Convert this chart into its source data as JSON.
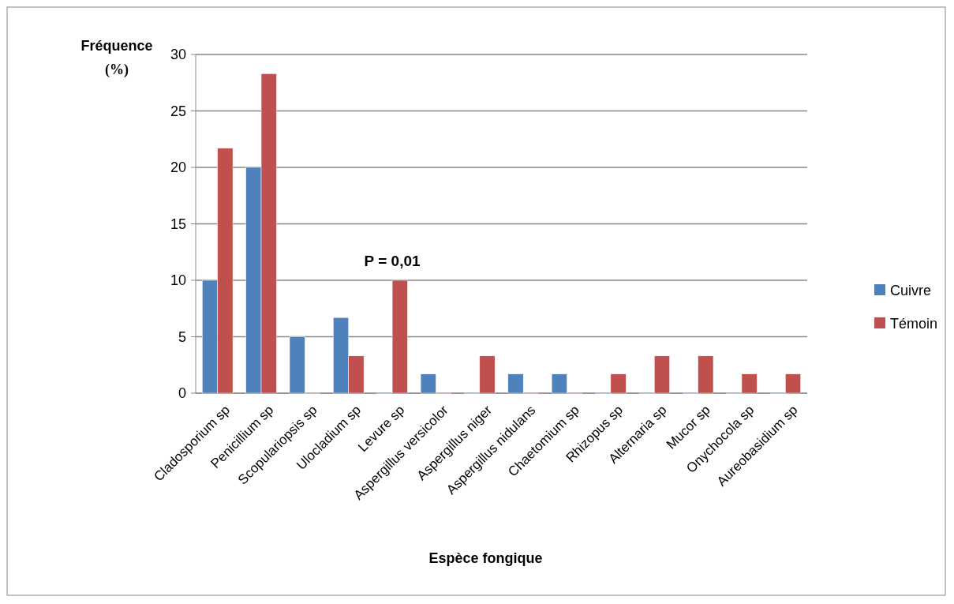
{
  "chart_data": {
    "type": "bar",
    "xlabel": "Espèce fongique",
    "ylabel": "Fréquence (%)",
    "categories": [
      "Cladosporium sp",
      "Penicillium sp",
      "Scopulariopsis sp",
      "Ulocladium sp",
      "Levure sp",
      "Aspergillus versicolor",
      "Aspergillus niger",
      "Aspergillus nidulans",
      "Chaetomium sp",
      "Rhizopus sp",
      "Alternaria sp",
      "Mucor sp",
      "Onychocola sp",
      "Aureobasidium sp"
    ],
    "series": [
      {
        "name": "Cuivre",
        "color": "#4f81bd",
        "values": [
          10,
          20,
          5,
          6.7,
          0,
          1.7,
          0,
          1.7,
          1.7,
          0,
          0,
          0,
          0,
          0
        ]
      },
      {
        "name": "Témoin",
        "color": "#c0504d",
        "values": [
          21.7,
          28.3,
          0,
          3.3,
          10,
          0,
          3.3,
          0,
          0,
          1.7,
          3.3,
          3.3,
          1.7,
          1.7
        ]
      }
    ],
    "ylim": [
      0,
      30
    ],
    "yticks": [
      0,
      5,
      10,
      15,
      20,
      25,
      30
    ],
    "grid": "y",
    "legend": "right",
    "annotations": [
      {
        "text": "P = 0,01",
        "x": "Levure sp",
        "y": 10
      }
    ]
  }
}
